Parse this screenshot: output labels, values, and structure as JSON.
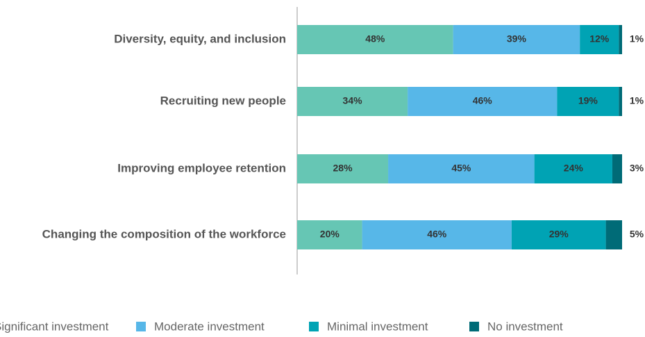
{
  "chart_data": {
    "type": "stacked-barh",
    "categories": [
      "Diversity, equity, and inclusion",
      "Recruiting new people",
      "Improving employee retention",
      "Changing the composition of the workforce"
    ],
    "xlim": [
      0,
      100
    ],
    "series": [
      {
        "name": "Significant investment",
        "color": "#66c6b4",
        "values": [
          48,
          34,
          28,
          20
        ],
        "value_labels": [
          "48%",
          "34%",
          "28%",
          "20%"
        ]
      },
      {
        "name": "Moderate investment",
        "color": "#57b7e8",
        "values": [
          39,
          46,
          45,
          46
        ],
        "value_labels": [
          "39%",
          "46%",
          "45%",
          "46%"
        ]
      },
      {
        "name": "Minimal investment",
        "color": "#00a3b4",
        "values": [
          12,
          19,
          24,
          29
        ],
        "value_labels": [
          "12%",
          "19%",
          "24%",
          "29%"
        ]
      },
      {
        "name": "No investment",
        "color": "#006b77",
        "values": [
          1,
          1,
          3,
          5
        ],
        "value_labels": [
          "1%",
          "1%",
          "3%",
          "5%"
        ]
      }
    ],
    "legend": "bottom"
  }
}
